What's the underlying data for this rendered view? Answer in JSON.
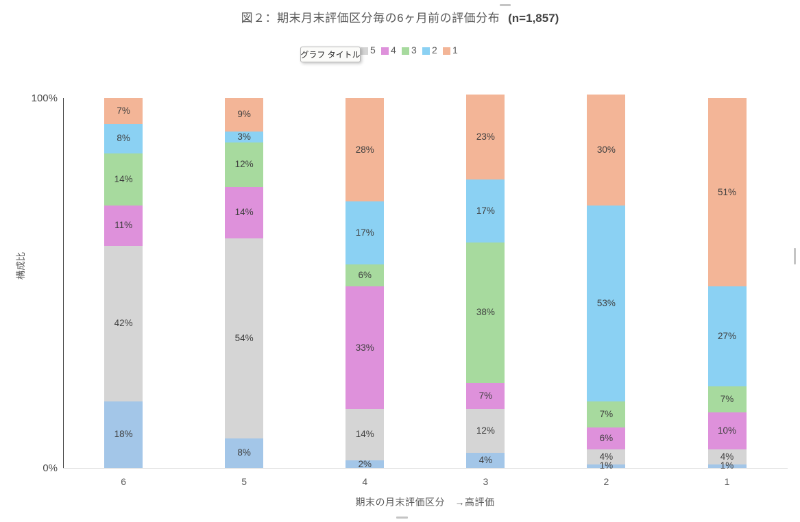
{
  "window": {
    "background": "#FFFFFF"
  },
  "title": {
    "main": "図２：期末月末評価区分毎の6ヶ月前の評価分布",
    "sample_size": "(n=1,857)"
  },
  "tooltip": {
    "label": "グラフ タイトル"
  },
  "legend": {
    "position": "top",
    "entries": [
      {
        "name": "6",
        "color": "#A3C6E8"
      },
      {
        "name": "5",
        "color": "#D5D5D5"
      },
      {
        "name": "4",
        "color": "#DE91DB"
      },
      {
        "name": "3",
        "color": "#A7DA9E"
      },
      {
        "name": "2",
        "color": "#8BD1F3"
      },
      {
        "name": "1",
        "color": "#F3B597"
      }
    ]
  },
  "axes": {
    "y_title": "構成比",
    "x_title": "期末の月末評価区分　→高評価",
    "y_max_label": "100%",
    "y_min_label": "0%"
  },
  "chart_data": {
    "type": "bar",
    "variant": "stacked-100-percent",
    "title": "図２：期末月末評価区分毎の6ヶ月前の評価分布 (n=1,857)",
    "xlabel": "期末の月末評価区分　→高評価",
    "ylabel": "構成比",
    "ylim": [
      0,
      100
    ],
    "unit": "%",
    "grid": false,
    "legend_position": "top",
    "categories": [
      "6",
      "5",
      "4",
      "3",
      "2",
      "1"
    ],
    "series": [
      {
        "name": "6",
        "color": "#A3C6E8",
        "values": [
          18,
          8,
          2,
          4,
          1,
          1
        ]
      },
      {
        "name": "5",
        "color": "#D5D5D5",
        "values": [
          42,
          54,
          14,
          12,
          4,
          4
        ]
      },
      {
        "name": "4",
        "color": "#DE91DB",
        "values": [
          11,
          14,
          33,
          7,
          6,
          10
        ]
      },
      {
        "name": "3",
        "color": "#A7DA9E",
        "values": [
          14,
          12,
          6,
          38,
          7,
          7
        ]
      },
      {
        "name": "2",
        "color": "#8BD1F3",
        "values": [
          8,
          3,
          17,
          17,
          53,
          27
        ]
      },
      {
        "name": "1",
        "color": "#F3B597",
        "values": [
          7,
          9,
          28,
          23,
          30,
          51
        ]
      }
    ]
  }
}
